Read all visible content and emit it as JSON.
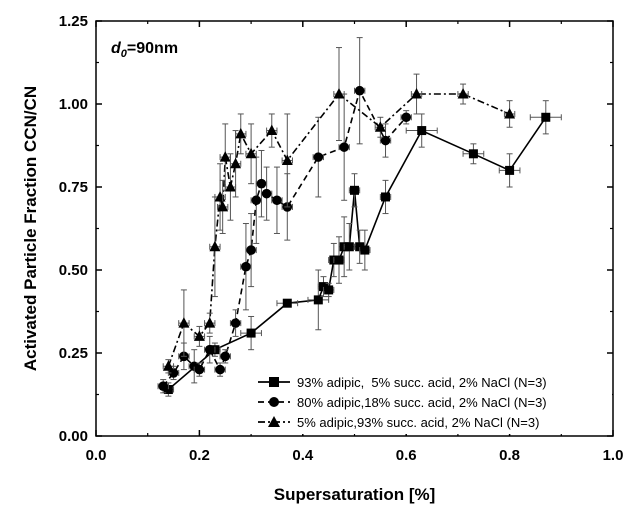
{
  "chart_data": {
    "type": "line",
    "title": "",
    "annotation": {
      "main": "d",
      "sub": "0",
      "value": "=90nm"
    },
    "xlabel": "Supersaturation [%]",
    "ylabel": "Activated Particle Fraction CCN/CN",
    "xlim": [
      0.0,
      1.0
    ],
    "ylim": [
      0.0,
      1.25
    ],
    "xticks": [
      0.0,
      0.2,
      0.4,
      0.6,
      0.8,
      1.0
    ],
    "xtick_labels": [
      "0.0",
      "0.2",
      "0.4",
      "0.6",
      "0.8",
      "1.0"
    ],
    "yticks": [
      0.0,
      0.25,
      0.5,
      0.75,
      1.0,
      1.25
    ],
    "ytick_labels": [
      "0.00",
      "0.25",
      "0.50",
      "0.75",
      "1.00",
      "1.25"
    ],
    "grid": false,
    "legend_position": "bottom-right",
    "series": [
      {
        "name": "93% adipic,  5% succ. acid, 2% NaCl (N=3)",
        "marker": "square",
        "line_style": "solid",
        "color": "#000000",
        "points": [
          {
            "x": 0.14,
            "y": 0.14,
            "yerr": 0.02,
            "xerr": 0.01
          },
          {
            "x": 0.23,
            "y": 0.26,
            "yerr": 0.02,
            "xerr": 0.01
          },
          {
            "x": 0.3,
            "y": 0.31,
            "yerr": 0.05,
            "xerr": 0.02
          },
          {
            "x": 0.37,
            "y": 0.4,
            "yerr": 0.01,
            "xerr": 0.02
          },
          {
            "x": 0.43,
            "y": 0.41,
            "yerr": 0.09,
            "xerr": 0.02
          },
          {
            "x": 0.44,
            "y": 0.45,
            "yerr": 0.03,
            "xerr": 0.01
          },
          {
            "x": 0.45,
            "y": 0.44,
            "yerr": 0.02,
            "xerr": 0.01
          },
          {
            "x": 0.46,
            "y": 0.53,
            "yerr": 0.05,
            "xerr": 0.01
          },
          {
            "x": 0.47,
            "y": 0.53,
            "yerr": 0.07,
            "xerr": 0.01
          },
          {
            "x": 0.48,
            "y": 0.57,
            "yerr": 0.09,
            "xerr": 0.01
          },
          {
            "x": 0.49,
            "y": 0.57,
            "yerr": 0.07,
            "xerr": 0.01
          },
          {
            "x": 0.5,
            "y": 0.74,
            "yerr": 0.05,
            "xerr": 0.01
          },
          {
            "x": 0.51,
            "y": 0.57,
            "yerr": 0.05,
            "xerr": 0.01
          },
          {
            "x": 0.52,
            "y": 0.56,
            "yerr": 0.06,
            "xerr": 0.01
          },
          {
            "x": 0.56,
            "y": 0.72,
            "yerr": 0.05,
            "xerr": 0.01
          },
          {
            "x": 0.63,
            "y": 0.92,
            "yerr": 0.05,
            "xerr": 0.03
          },
          {
            "x": 0.73,
            "y": 0.85,
            "yerr": 0.03,
            "xerr": 0.02
          },
          {
            "x": 0.8,
            "y": 0.8,
            "yerr": 0.05,
            "xerr": 0.02
          },
          {
            "x": 0.87,
            "y": 0.96,
            "yerr": 0.05,
            "xerr": 0.03
          }
        ]
      },
      {
        "name": "80% adipic,18% succ. acid, 2% NaCl (N=3)",
        "marker": "circle",
        "line_style": "dashed",
        "color": "#000000",
        "points": [
          {
            "x": 0.13,
            "y": 0.15,
            "yerr": 0.02,
            "xerr": 0.01
          },
          {
            "x": 0.15,
            "y": 0.19,
            "yerr": 0.02,
            "xerr": 0.01
          },
          {
            "x": 0.17,
            "y": 0.24,
            "yerr": 0.04,
            "xerr": 0.01
          },
          {
            "x": 0.19,
            "y": 0.21,
            "yerr": 0.05,
            "xerr": 0.01
          },
          {
            "x": 0.2,
            "y": 0.2,
            "yerr": 0.02,
            "xerr": 0.01
          },
          {
            "x": 0.22,
            "y": 0.26,
            "yerr": 0.04,
            "xerr": 0.01
          },
          {
            "x": 0.24,
            "y": 0.2,
            "yerr": 0.02,
            "xerr": 0.01
          },
          {
            "x": 0.25,
            "y": 0.24,
            "yerr": 0.02,
            "xerr": 0.01
          },
          {
            "x": 0.27,
            "y": 0.34,
            "yerr": 0.04,
            "xerr": 0.01
          },
          {
            "x": 0.29,
            "y": 0.51,
            "yerr": 0.13,
            "xerr": 0.01
          },
          {
            "x": 0.3,
            "y": 0.56,
            "yerr": 0.11,
            "xerr": 0.01
          },
          {
            "x": 0.31,
            "y": 0.71,
            "yerr": 0.13,
            "xerr": 0.01
          },
          {
            "x": 0.32,
            "y": 0.76,
            "yerr": 0.1,
            "xerr": 0.01
          },
          {
            "x": 0.33,
            "y": 0.73,
            "yerr": 0.08,
            "xerr": 0.01
          },
          {
            "x": 0.35,
            "y": 0.71,
            "yerr": 0.1,
            "xerr": 0.01
          },
          {
            "x": 0.37,
            "y": 0.69,
            "yerr": 0.1,
            "xerr": 0.01
          },
          {
            "x": 0.43,
            "y": 0.84,
            "yerr": 0.12,
            "xerr": 0.01
          },
          {
            "x": 0.48,
            "y": 0.87,
            "yerr": 0.16,
            "xerr": 0.01
          },
          {
            "x": 0.51,
            "y": 1.04,
            "yerr": 0.16,
            "xerr": 0.01
          },
          {
            "x": 0.56,
            "y": 0.89,
            "yerr": 0.05,
            "xerr": 0.01
          },
          {
            "x": 0.6,
            "y": 0.96,
            "yerr": 0.02,
            "xerr": 0.01
          }
        ]
      },
      {
        "name": "5% adipic,93% succ. acid, 2% NaCl (N=3)",
        "marker": "triangle",
        "line_style": "dashdot",
        "color": "#000000",
        "points": [
          {
            "x": 0.14,
            "y": 0.21,
            "yerr": 0.02,
            "xerr": 0.01
          },
          {
            "x": 0.17,
            "y": 0.34,
            "yerr": 0.1,
            "xerr": 0.01
          },
          {
            "x": 0.2,
            "y": 0.3,
            "yerr": 0.03,
            "xerr": 0.01
          },
          {
            "x": 0.22,
            "y": 0.34,
            "yerr": 0.03,
            "xerr": 0.01
          },
          {
            "x": 0.23,
            "y": 0.57,
            "yerr": 0.15,
            "xerr": 0.01
          },
          {
            "x": 0.24,
            "y": 0.72,
            "yerr": 0.1,
            "xerr": 0.01
          },
          {
            "x": 0.245,
            "y": 0.69,
            "yerr": 0.08,
            "xerr": 0.01
          },
          {
            "x": 0.25,
            "y": 0.84,
            "yerr": 0.1,
            "xerr": 0.01
          },
          {
            "x": 0.26,
            "y": 0.75,
            "yerr": 0.1,
            "xerr": 0.01
          },
          {
            "x": 0.27,
            "y": 0.82,
            "yerr": 0.1,
            "xerr": 0.01
          },
          {
            "x": 0.28,
            "y": 0.91,
            "yerr": 0.06,
            "xerr": 0.01
          },
          {
            "x": 0.3,
            "y": 0.85,
            "yerr": 0.09,
            "xerr": 0.01
          },
          {
            "x": 0.34,
            "y": 0.92,
            "yerr": 0.05,
            "xerr": 0.01
          },
          {
            "x": 0.37,
            "y": 0.83,
            "yerr": 0.14,
            "xerr": 0.01
          },
          {
            "x": 0.47,
            "y": 1.03,
            "yerr": 0.14,
            "xerr": 0.01
          },
          {
            "x": 0.55,
            "y": 0.93,
            "yerr": 0.03,
            "xerr": 0.01
          },
          {
            "x": 0.62,
            "y": 1.03,
            "yerr": 0.06,
            "xerr": 0.01
          },
          {
            "x": 0.71,
            "y": 1.03,
            "yerr": 0.03,
            "xerr": 0.01
          },
          {
            "x": 0.8,
            "y": 0.97,
            "yerr": 0.04,
            "xerr": 0.01
          }
        ]
      }
    ]
  }
}
